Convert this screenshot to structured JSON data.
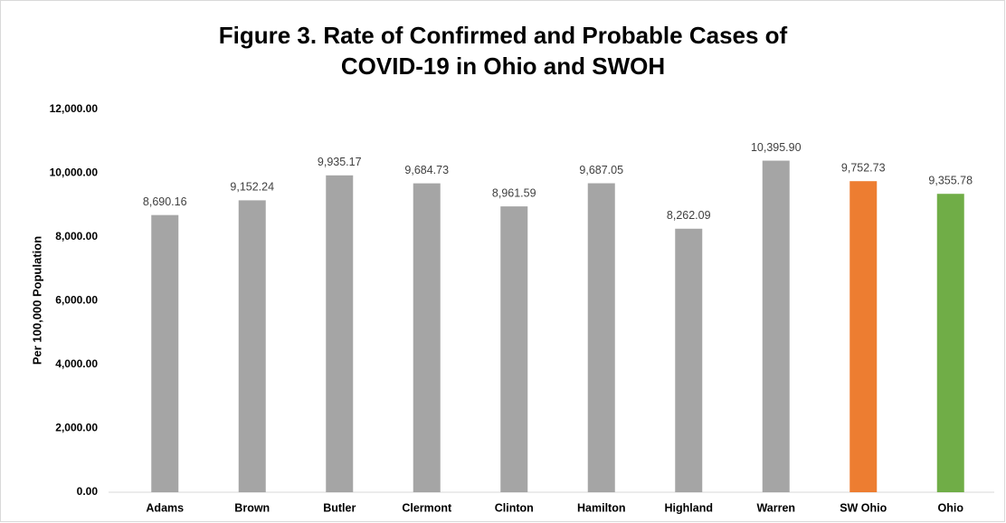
{
  "chart_data": {
    "type": "bar",
    "title": "Figure 3. Rate of Confirmed and Probable Cases of COVID-19 in Ohio and SWOH",
    "y_label": "Per 100,000 Population",
    "categories": [
      "Adams",
      "Brown",
      "Butler",
      "Clermont",
      "Clinton",
      "Hamilton",
      "Highland",
      "Warren",
      "SW Ohio",
      "Ohio"
    ],
    "values": [
      8690.16,
      9152.24,
      9935.17,
      9684.73,
      8961.59,
      9687.05,
      8262.09,
      10395.9,
      9752.73,
      9355.78
    ],
    "value_labels": [
      "8,690.16",
      "9,152.24",
      "9,935.17",
      "9,684.73",
      "8,961.59",
      "9,687.05",
      "8,262.09",
      "10,395.90",
      "9,752.73",
      "9,355.78"
    ],
    "colors": [
      "#a5a5a5",
      "#a5a5a5",
      "#a5a5a5",
      "#a5a5a5",
      "#a5a5a5",
      "#a5a5a5",
      "#a5a5a5",
      "#a5a5a5",
      "#ed7d31",
      "#70ad47"
    ],
    "ylim": [
      0,
      12000
    ],
    "yticks": [
      {
        "value": 0,
        "label": "0.00"
      },
      {
        "value": 2000,
        "label": "2,000.00"
      },
      {
        "value": 4000,
        "label": "4,000.00"
      },
      {
        "value": 6000,
        "label": "6,000.00"
      },
      {
        "value": 8000,
        "label": "8,000.00"
      },
      {
        "value": 10000,
        "label": "10,000.00"
      },
      {
        "value": 12000,
        "label": "12,000.00"
      }
    ],
    "grid": false
  }
}
